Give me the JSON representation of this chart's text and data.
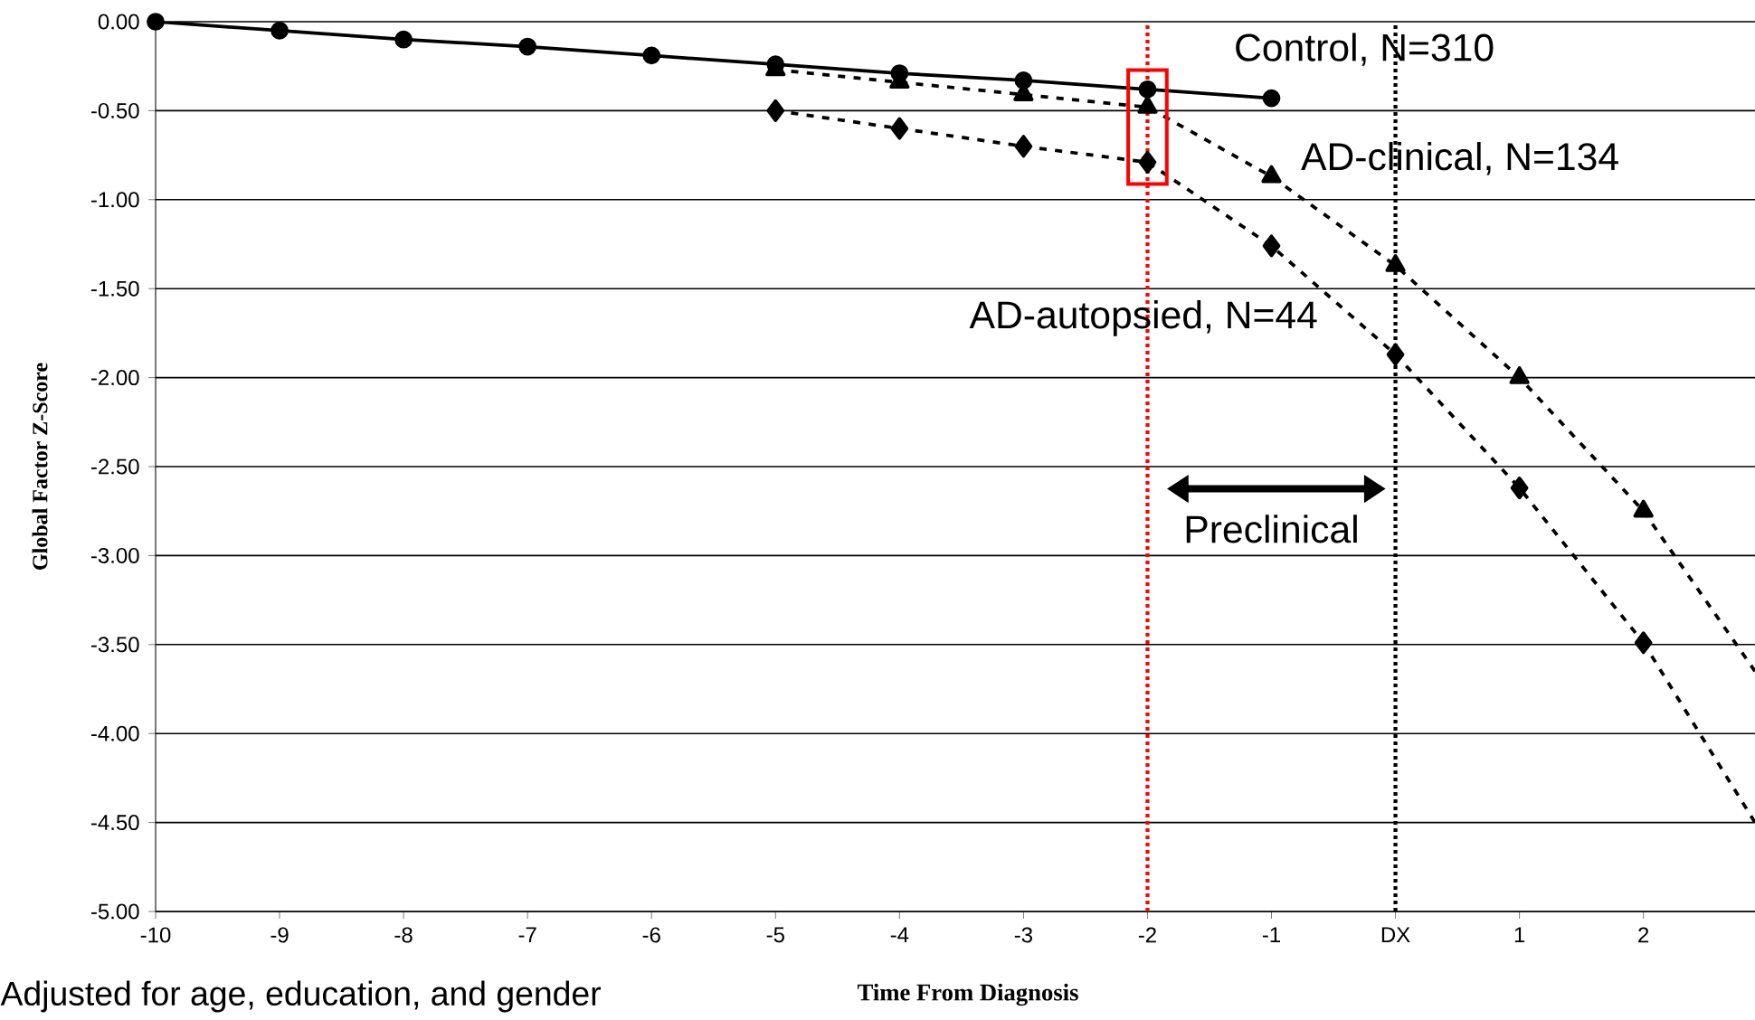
{
  "chart_data": {
    "type": "line",
    "xlabel": "Time From  Diagnosis",
    "ylabel": "Global Factor Z-Score",
    "annotations": [
      "Adjusted for age, education, and gender",
      "Preclinical"
    ],
    "xlim": [
      -10,
      2.9
    ],
    "ylim": [
      -5,
      0
    ],
    "xticks": [
      -10,
      -9,
      -8,
      -7,
      -6,
      -5,
      -4,
      -3,
      -2,
      -1,
      {
        "value": 0,
        "label": "DX"
      },
      1,
      2
    ],
    "yticks": [
      {
        "value": -5,
        "label": "-5.00"
      },
      {
        "value": -4.5,
        "label": "-4.50"
      },
      {
        "value": -4,
        "label": "-4.00"
      },
      {
        "value": -3.5,
        "label": "-3.50"
      },
      {
        "value": -3,
        "label": "-3.00"
      },
      {
        "value": -2.5,
        "label": "-2.50"
      },
      {
        "value": -2,
        "label": "-2.00"
      },
      {
        "value": -1.5,
        "label": "-1.50"
      },
      {
        "value": -1,
        "label": "-1.00"
      },
      {
        "value": -0.5,
        "label": "-0.50"
      },
      {
        "value": 0,
        "label": "0.00"
      }
    ],
    "grid": "y",
    "series": [
      {
        "name": "Control, N=310",
        "color": "#000000",
        "marker": "circle",
        "line_style": "solid",
        "x": [
          -10,
          -9,
          -8,
          -7,
          -6,
          -5,
          -4,
          -3,
          -2,
          -1
        ],
        "values": [
          0,
          -0.05,
          -0.1,
          -0.14,
          -0.19,
          -0.24,
          -0.29,
          -0.33,
          -0.38,
          -0.43
        ]
      },
      {
        "name": "AD-clinical, N=134",
        "color": "#000000",
        "marker": "triangle",
        "line_style": "dashed",
        "x": [
          -5,
          -4,
          -3,
          -2,
          -1,
          0,
          1,
          2
        ],
        "values": [
          -0.27,
          -0.34,
          -0.41,
          -0.48,
          -0.87,
          -1.37,
          -2.0,
          -2.75
        ]
      },
      {
        "color": "#000000",
        "marker": "none",
        "line_style": "dashed",
        "x": [
          2,
          2.9
        ],
        "values": [
          -2.75,
          -3.65
        ]
      },
      {
        "name": "AD-autopsied, N=44",
        "color": "#000000",
        "marker": "diamond",
        "line_style": "dashed",
        "x": [
          -5,
          -4,
          -3,
          -2,
          -1,
          0,
          1,
          2
        ],
        "values": [
          -0.5,
          -0.6,
          -0.7,
          -0.79,
          -1.26,
          -1.87,
          -2.62,
          -3.49
        ]
      },
      {
        "color": "#000000",
        "marker": "none",
        "line_style": "dashed",
        "x": [
          2,
          2.9
        ],
        "values": [
          -3.49,
          -4.5
        ]
      }
    ],
    "ref_lines": [
      {
        "axis": "x",
        "value": -2,
        "color": "#ff0000",
        "line_style": "dotted"
      },
      {
        "axis": "x",
        "value": 0,
        "color": "#000000",
        "line_style": "dotted"
      }
    ]
  }
}
